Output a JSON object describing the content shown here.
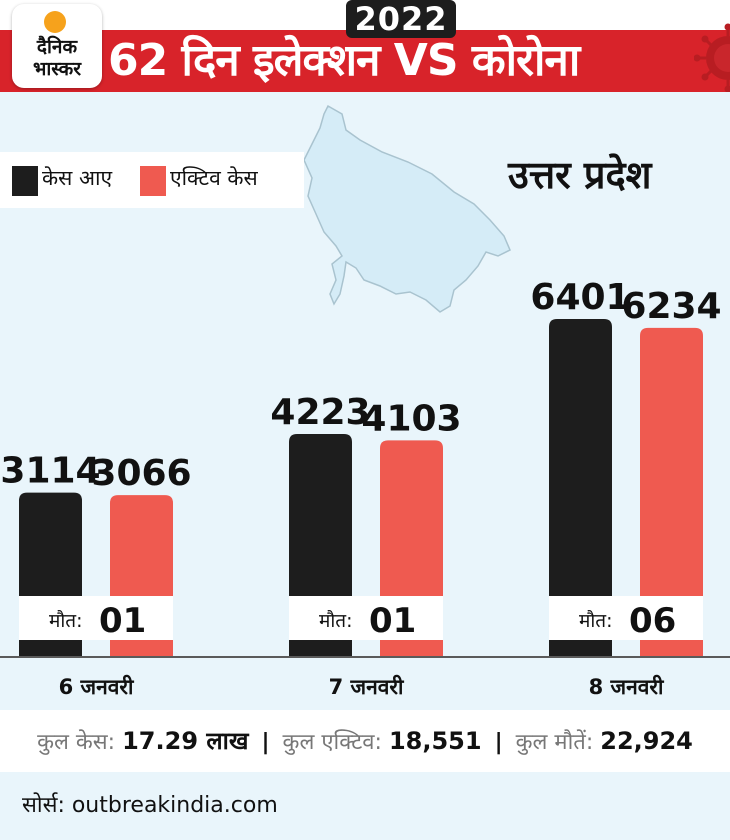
{
  "header": {
    "logo_line1": "दैनिक",
    "logo_line2": "भास्कर",
    "year_badge": "2022",
    "title": "62 दिन इलेक्शन VS कोरोना"
  },
  "legend": {
    "cases_label": "केस आए",
    "active_label": "एक्टिव केस"
  },
  "state_label": "उत्तर प्रदेश",
  "chart_data": {
    "type": "bar",
    "categories": [
      "6 जनवरी",
      "7 जनवरी",
      "8 जनवरी"
    ],
    "series": [
      {
        "name": "केस आए",
        "values": [
          3114,
          4223,
          6401
        ],
        "labels": [
          "3114",
          "4223",
          "6401"
        ],
        "color": "#1d1d1d"
      },
      {
        "name": "एक्टिव केस",
        "values": [
          3066,
          4103,
          6234
        ],
        "labels": [
          "3066",
          "4103",
          "6234"
        ],
        "color": "#ef5a50"
      }
    ],
    "deaths_label": "मौत:",
    "deaths": [
      "01",
      "01",
      "06"
    ]
  },
  "summary": {
    "total_cases_label": "कुल केस:",
    "total_cases_value": "17.29 लाख",
    "total_active_label": "कुल एक्टिव:",
    "total_active_value": "18,551",
    "total_deaths_label": "कुल मौतें:",
    "total_deaths_value": "22,924",
    "separator": "|"
  },
  "source": "सोर्स: outbreakindia.com",
  "colors": {
    "brand_red": "#d8232a",
    "cases": "#1d1d1d",
    "active": "#ef5a50",
    "panel_bg": "#e9f5fb"
  }
}
